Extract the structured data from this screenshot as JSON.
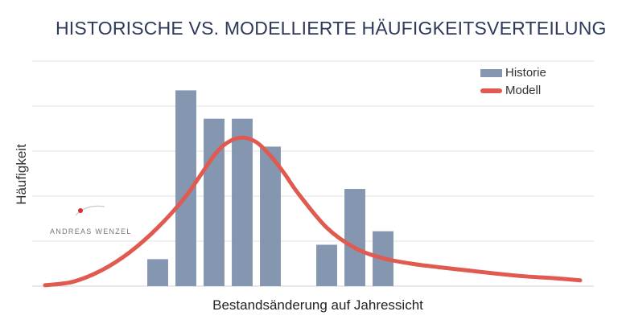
{
  "chart_data": {
    "type": "bar",
    "title": "HISTORISCHE VS. MODELLIERTE HÄUFIGKEITSVERTEILUNG",
    "xlabel": "Bestandsänderung auf Jahressicht",
    "ylabel": "Häufigkeit",
    "x_range": [
      0,
      19
    ],
    "ylim": [
      0,
      5
    ],
    "grid": true,
    "legend_position": "top-right",
    "series": [
      {
        "name": "Historie",
        "type": "bar",
        "color": "#8496b0",
        "x": [
          4,
          5,
          6,
          7,
          8,
          9,
          10,
          11,
          12
        ],
        "values": [
          0.6,
          4.35,
          3.72,
          3.72,
          3.1,
          0,
          0.92,
          2.16,
          1.22
        ]
      },
      {
        "name": "Modell",
        "type": "line",
        "color": "#e05a50",
        "x": [
          0,
          1,
          2,
          3,
          4,
          5,
          6,
          6.5,
          7,
          7.5,
          8,
          8.5,
          9,
          10,
          11,
          12,
          13,
          14,
          15,
          16,
          17,
          18,
          19
        ],
        "values": [
          0.02,
          0.1,
          0.35,
          0.75,
          1.3,
          2.0,
          2.9,
          3.2,
          3.3,
          3.2,
          2.9,
          2.5,
          2.05,
          1.3,
          0.85,
          0.62,
          0.5,
          0.42,
          0.35,
          0.28,
          0.22,
          0.18,
          0.13
        ]
      }
    ]
  },
  "watermark": {
    "text": "ANDREAS WENZEL"
  }
}
